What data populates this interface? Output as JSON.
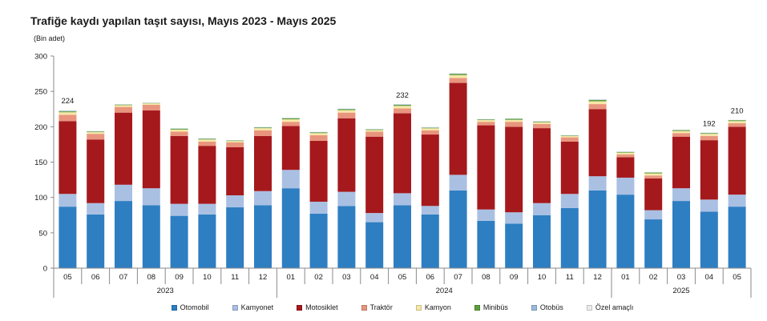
{
  "chart_data": {
    "type": "bar",
    "stacked": true,
    "title": "Trafiğe kaydı yapılan taşıt sayısı, Mayıs 2023 - Mayıs 2025",
    "ylabel": "(Bin adet)",
    "ylim": [
      0,
      300
    ],
    "yticks": [
      0,
      50,
      100,
      150,
      200,
      250,
      300
    ],
    "grid": false,
    "legend_position": "bottom",
    "categories": [
      "05",
      "06",
      "07",
      "08",
      "09",
      "10",
      "11",
      "12",
      "01",
      "02",
      "03",
      "04",
      "05",
      "06",
      "07",
      "08",
      "09",
      "10",
      "11",
      "12",
      "01",
      "02",
      "03",
      "04",
      "05"
    ],
    "x_groups": [
      {
        "label": "2023",
        "categories": [
          "05",
          "06",
          "07",
          "08",
          "09",
          "10",
          "11",
          "12"
        ]
      },
      {
        "label": "2024",
        "categories": [
          "01",
          "02",
          "03",
          "04",
          "05",
          "06",
          "07",
          "08",
          "09",
          "10",
          "11",
          "12"
        ]
      },
      {
        "label": "2025",
        "categories": [
          "01",
          "02",
          "03",
          "04",
          "05"
        ]
      }
    ],
    "series": [
      {
        "name": "Otomobil",
        "color": "#2e7ec2",
        "values": [
          87,
          76,
          95,
          89,
          74,
          76,
          86,
          89,
          113,
          77,
          88,
          65,
          89,
          76,
          110,
          67,
          63,
          75,
          85,
          110,
          104,
          69,
          95,
          80,
          87
        ]
      },
      {
        "name": "Kamyonet",
        "color": "#a9c0e3",
        "values": [
          18,
          16,
          23,
          24,
          17,
          15,
          17,
          20,
          26,
          17,
          20,
          13,
          17,
          12,
          22,
          16,
          16,
          17,
          20,
          20,
          24,
          13,
          18,
          17,
          17
        ]
      },
      {
        "name": "Motosiklet",
        "color": "#a5191d",
        "values": [
          103,
          90,
          102,
          110,
          96,
          82,
          68,
          78,
          62,
          86,
          104,
          108,
          113,
          101,
          130,
          119,
          121,
          106,
          74,
          95,
          29,
          45,
          73,
          84,
          96
        ]
      },
      {
        "name": "Traktör",
        "color": "#e9957e",
        "values": [
          9,
          8,
          8,
          8,
          6,
          6,
          7,
          8,
          6,
          8,
          8,
          7,
          7,
          6,
          7,
          5,
          7,
          6,
          6,
          7,
          4,
          4,
          5,
          6,
          5
        ]
      },
      {
        "name": "Kamyon",
        "color": "#f7e7a6",
        "values": [
          3.5,
          2.4,
          2.5,
          2.0,
          3.0,
          3.0,
          1.8,
          3.0,
          3.5,
          3.0,
          3.5,
          2.4,
          3.5,
          2.8,
          4.0,
          2.4,
          2.8,
          2.4,
          1.8,
          4.0,
          2.4,
          3.0,
          3.0,
          3.0,
          3.0
        ]
      },
      {
        "name": "Minibüs",
        "color": "#5c9e3c",
        "values": [
          1.3,
          0.9,
          0.8,
          0.6,
          1.2,
          1.0,
          0.7,
          1.0,
          1.5,
          1.1,
          1.4,
          0.9,
          1.4,
          0.8,
          1.8,
          0.9,
          1.4,
          0.9,
          0.7,
          1.8,
          0.9,
          1.2,
          1.2,
          1.0,
          1.2
        ]
      },
      {
        "name": "Otobüs",
        "color": "#9ab9dc",
        "values": [
          0.6,
          0.4,
          0.4,
          0.2,
          0.4,
          0.5,
          0.3,
          0.5,
          0.5,
          0.5,
          0.6,
          0.4,
          0.6,
          0.4,
          0.6,
          0.4,
          0.4,
          0.4,
          0.3,
          0.6,
          0.4,
          0.4,
          0.4,
          0.5,
          0.4
        ]
      },
      {
        "name": "Özel amaçlı",
        "color": "#ececec",
        "values": [
          1.6,
          0.3,
          0.3,
          0.2,
          0.4,
          0.5,
          0.2,
          0.5,
          0.5,
          0.4,
          0.5,
          0.3,
          0.5,
          1.0,
          0.6,
          0.3,
          0.4,
          0.3,
          0.2,
          0.6,
          0.3,
          0.4,
          0.4,
          0.5,
          0.4
        ]
      }
    ],
    "data_labels": [
      224,
      null,
      null,
      null,
      null,
      null,
      null,
      null,
      null,
      null,
      null,
      null,
      232,
      null,
      null,
      null,
      null,
      null,
      null,
      null,
      null,
      null,
      null,
      192,
      210
    ]
  }
}
